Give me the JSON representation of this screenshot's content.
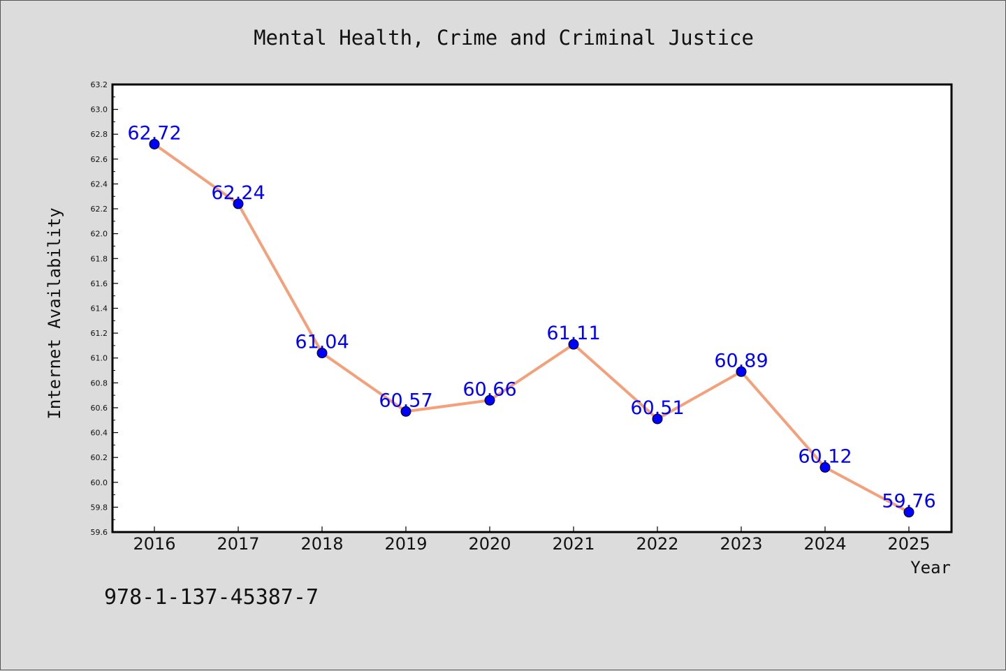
{
  "chart_data": {
    "type": "line",
    "title": "Mental Health, Crime and Criminal Justice",
    "xlabel": "Year",
    "ylabel": "Internet Availability",
    "categories": [
      "2016",
      "2017",
      "2018",
      "2019",
      "2020",
      "2021",
      "2022",
      "2023",
      "2024",
      "2025"
    ],
    "series": [
      {
        "values": [
          62.72,
          62.24,
          61.04,
          60.57,
          60.66,
          61.11,
          60.51,
          60.89,
          60.12,
          59.76
        ],
        "labels": [
          "62.72",
          "62.24",
          "61.04",
          "60.57",
          "60.66",
          "61.11",
          "60.51",
          "60.89",
          "60.12",
          "59.76"
        ],
        "line_color": "#f4a07a",
        "marker_color": "#0000ff"
      }
    ],
    "ylim": [
      59.6,
      63.2
    ],
    "yticks": [
      "59.6",
      "59.8",
      "60.0",
      "60.2",
      "60.4",
      "60.6",
      "60.8",
      "61.0",
      "61.2",
      "61.4",
      "61.6",
      "61.8",
      "62.0",
      "62.2",
      "62.4",
      "62.6",
      "62.8",
      "63.0",
      "63.2"
    ],
    "grid": false,
    "legend": "none"
  },
  "footnote": "978-1-137-45387-7",
  "colors": {
    "background": "#dcdcdc",
    "plot_area": "#ffffff",
    "data_label": "#0000ff"
  }
}
